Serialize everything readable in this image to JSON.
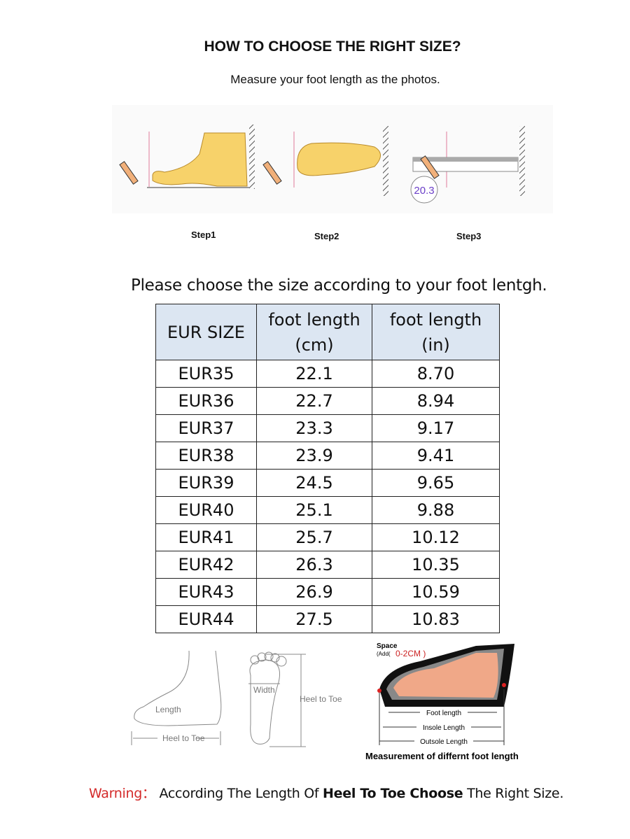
{
  "header": {
    "title": "HOW TO CHOOSE THE RIGHT SIZE?",
    "subtitle": "Measure your foot length as the photos."
  },
  "steps": [
    {
      "label": "Step1"
    },
    {
      "label": "Step2"
    },
    {
      "label": "Step3",
      "reading": "20.3"
    }
  ],
  "instruction": "Please choose the size according to your foot lentgh.",
  "size_table": {
    "header_bg": "#dce6f2",
    "columns": [
      "EUR SIZE",
      "foot length (cm)",
      "foot length (in)"
    ],
    "column_lines": [
      [
        "EUR SIZE"
      ],
      [
        "foot length",
        "(cm)"
      ],
      [
        "foot length",
        "(in)"
      ]
    ],
    "rows": [
      [
        "EUR35",
        "22.1",
        "8.70"
      ],
      [
        "EUR36",
        "22.7",
        "8.94"
      ],
      [
        "EUR37",
        "23.3",
        "9.17"
      ],
      [
        "EUR38",
        "23.9",
        "9.41"
      ],
      [
        "EUR39",
        "24.5",
        "9.65"
      ],
      [
        "EUR40",
        "25.1",
        "9.88"
      ],
      [
        "EUR41",
        "25.7",
        "10.12"
      ],
      [
        "EUR42",
        "26.3",
        "10.35"
      ],
      [
        "EUR43",
        "26.9",
        "10.59"
      ],
      [
        "EUR44",
        "27.5",
        "10.83"
      ]
    ]
  },
  "diagrams": {
    "side_view": {
      "length": "Length",
      "heel_to_toe": "Heel to Toe"
    },
    "sole_view": {
      "width": "Width",
      "heel_to_toe": "Heel to Toe"
    },
    "shoe_view": {
      "space_label": "Space",
      "space_add": "(Add(",
      "space_value": "0-2CM )",
      "foot_length": "Foot length",
      "insole_length": "Insole Length",
      "outsole_length": "Outsole Length",
      "caption": "Measurement of differnt foot length"
    }
  },
  "warning": {
    "prefix": "Warning：",
    "text_1": "According The Length Of ",
    "bold_1": "Heel To Toe Choose",
    "text_2": " The Right Size.",
    "color": "#d42a2a"
  }
}
